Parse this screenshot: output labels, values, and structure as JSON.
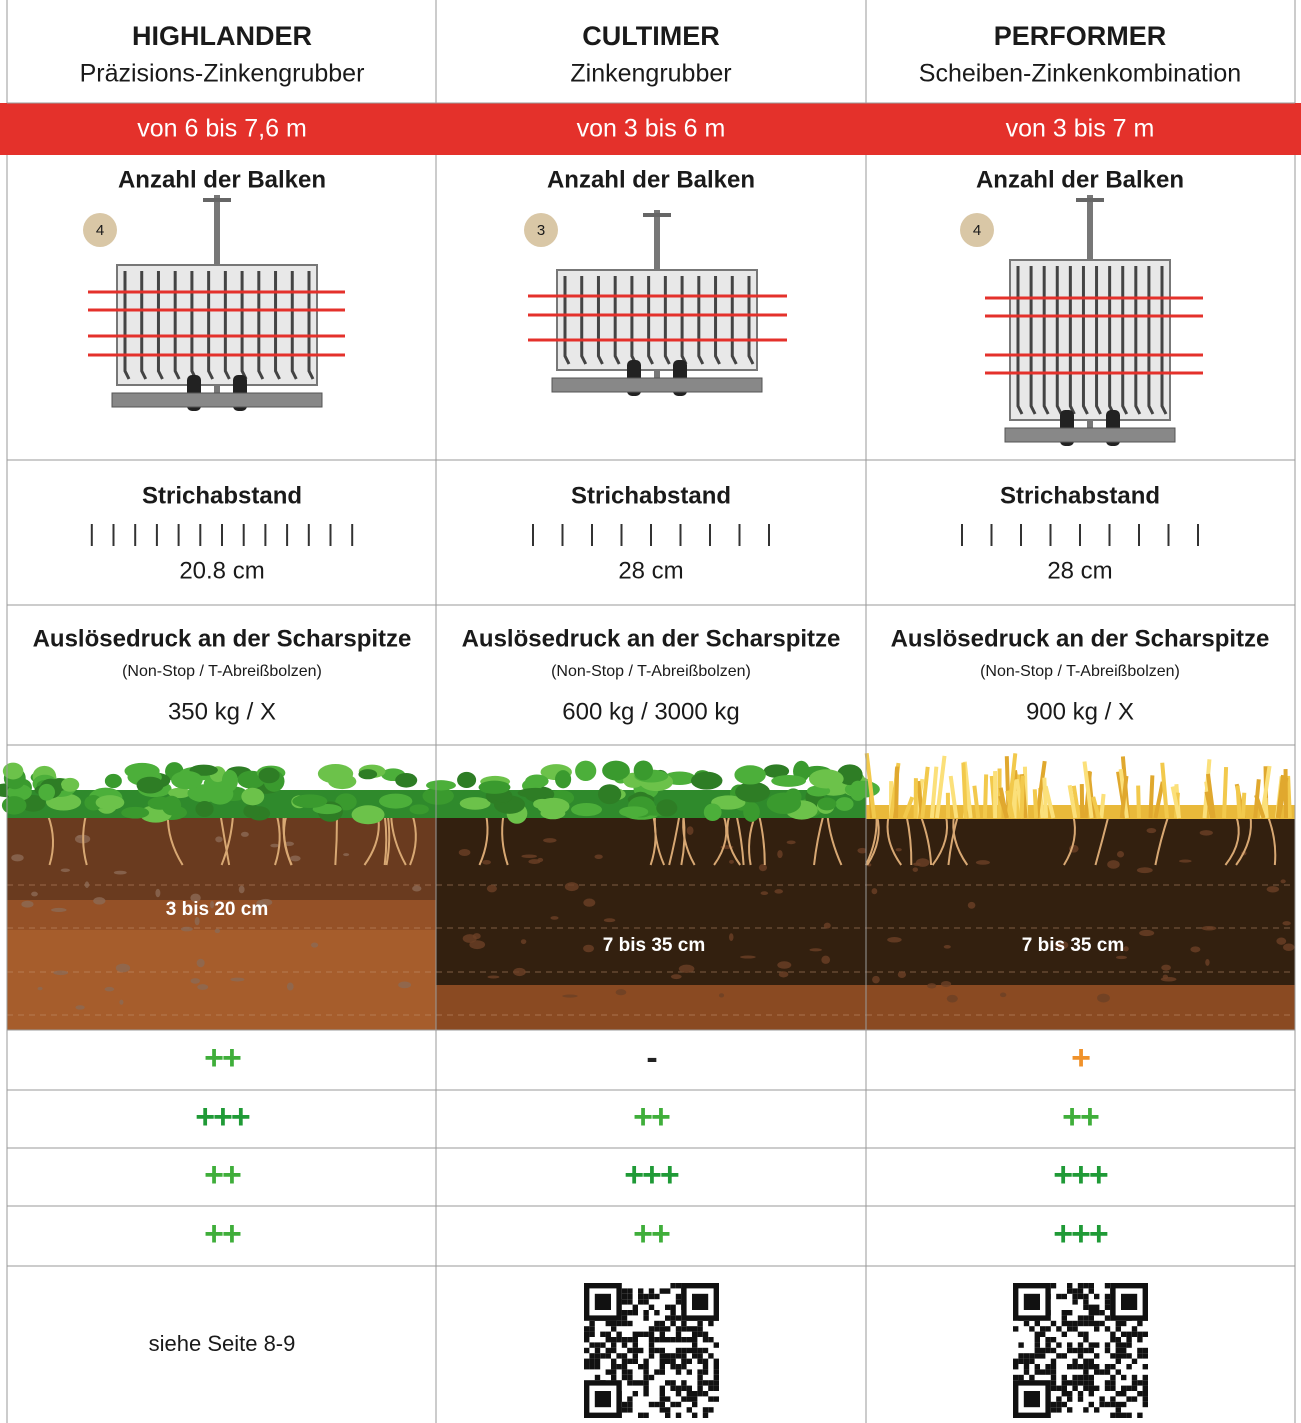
{
  "columns": [
    {
      "name": "HIGHLANDER",
      "subtitle": "Präzisions-Zinkengrubber",
      "width_range": "von 6 bis 7,6 m",
      "beams_label": "Anzahl der Balken",
      "beams": 4,
      "spacing_label": "Strichabstand",
      "spacing": "20.8 cm",
      "pressure_label": "Auslösedruck an der Scharspitze",
      "pressure_note": "(Non-Stop / T-Abreißbolzen)",
      "pressure": "350 kg / X",
      "depth": "3 bis 20 cm",
      "ratings": [
        {
          "text": "++",
          "color": "#3fae3a"
        },
        {
          "text": "+++",
          "color": "#1f9a36"
        },
        {
          "text": "++",
          "color": "#3fae3a"
        },
        {
          "text": "++",
          "color": "#3fae3a"
        }
      ],
      "link": "siehe Seite 8-9"
    },
    {
      "name": "CULTIMER",
      "subtitle": "Zinkengrubber",
      "width_range": "von 3 bis 6 m",
      "beams_label": "Anzahl der Balken",
      "beams": 3,
      "spacing_label": "Strichabstand",
      "spacing": "28 cm",
      "pressure_label": "Auslösedruck an der Scharspitze",
      "pressure_note": "(Non-Stop / T-Abreißbolzen)",
      "pressure": "600 kg / 3000 kg",
      "depth": "7 bis 35 cm",
      "ratings": [
        {
          "text": "-",
          "color": "#222222"
        },
        {
          "text": "++",
          "color": "#3fae3a"
        },
        {
          "text": "+++",
          "color": "#1f9a36"
        },
        {
          "text": "++",
          "color": "#3fae3a"
        }
      ]
    },
    {
      "name": "PERFORMER",
      "subtitle": "Scheiben-Zinkenkombination",
      "width_range": "von 3 bis 7 m",
      "beams_label": "Anzahl der Balken",
      "beams": 4,
      "spacing_label": "Strichabstand",
      "spacing": "28 cm",
      "pressure_label": "Auslösedruck an der Scharspitze",
      "pressure_note": "(Non-Stop / T-Abreißbolzen)",
      "pressure": "900 kg / X",
      "depth": "7 bis 35 cm",
      "ratings": [
        {
          "text": "+",
          "color": "#f0922b"
        },
        {
          "text": "++",
          "color": "#3fae3a"
        },
        {
          "text": "+++",
          "color": "#1f9a36"
        },
        {
          "text": "+++",
          "color": "#1f9a36"
        }
      ]
    }
  ]
}
